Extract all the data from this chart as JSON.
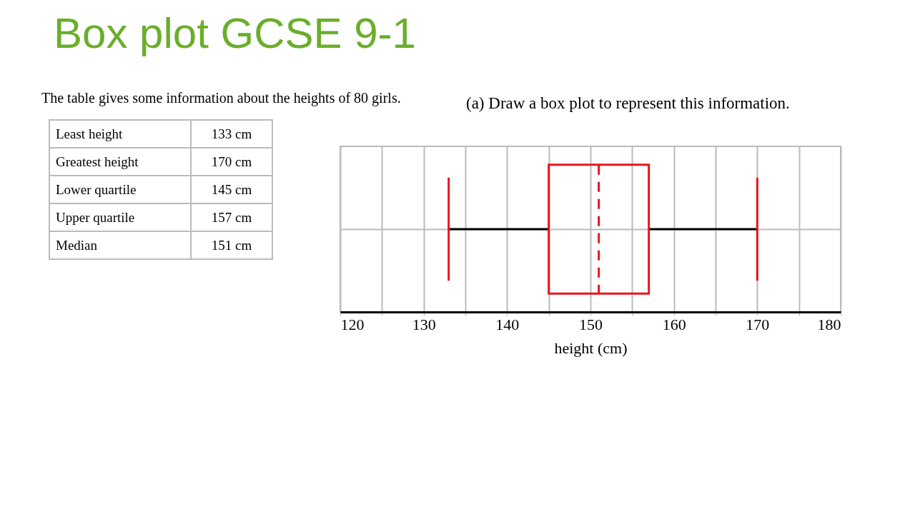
{
  "chart_data": {
    "type": "box",
    "title": "Box plot GCSE 9-1",
    "xlabel": "height (cm)",
    "annotations": [
      "The table gives some information about the heights of 80 girls.",
      "(a) Draw a box plot to represent this information.",
      "Least height",
      "133 cm",
      "Greatest height",
      "170 cm",
      "Lower quartile",
      "145 cm",
      "Upper quartile",
      "157 cm",
      "Median",
      "151 cm"
    ],
    "categories": [
      null
    ],
    "series": [
      {
        "color": "#e8141c",
        "boxes": [
          {
            "low": 133,
            "q1": 145,
            "median": 151,
            "q3": 157,
            "high": 170
          }
        ]
      }
    ],
    "orientation": "horizontal",
    "xlim": [
      120,
      180
    ],
    "xticks": [
      120,
      {
        "value": 125,
        "label": null
      },
      130,
      {
        "value": 135,
        "label": null
      },
      140,
      {
        "value": 145,
        "label": null
      },
      150,
      {
        "value": 155,
        "label": null
      },
      160,
      {
        "value": 165,
        "label": null
      },
      170,
      {
        "value": 175,
        "label": null
      },
      180
    ],
    "grid": true,
    "tick_labels": "x"
  }
}
